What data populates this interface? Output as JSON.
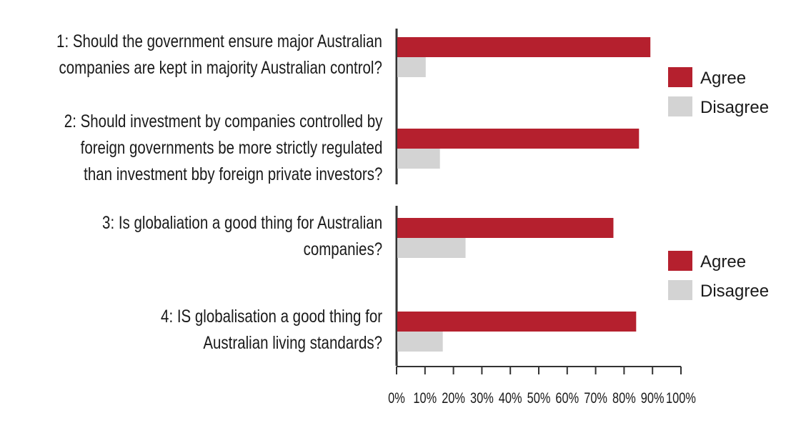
{
  "chart_data": {
    "type": "bar",
    "orientation": "horizontal",
    "categories": [
      "1: Should the government ensure major Australian companies are kept in majority Australian control?",
      "2: Should investment by companies controlled by foreign governments be more strictly regulated than investment bby foreign private investors?",
      "3: Is globaliation a good thing for Australian companies?",
      "4: IS globalisation a good thing for Australian living standards?"
    ],
    "category_lines": [
      [
        "1: Should the government ensure major Australian",
        "companies are kept in majority Australian control?"
      ],
      [
        "2: Should investment by companies controlled by",
        "foreign governments be more strictly regulated",
        "than investment bby foreign private investors?"
      ],
      [
        "3: Is globaliation a good thing for Australian",
        "companies?"
      ],
      [
        "4: IS globalisation a good thing for",
        "Australian living standards?"
      ]
    ],
    "series": [
      {
        "name": "Agree",
        "color": "#b5202e",
        "values": [
          89,
          85,
          76,
          84
        ]
      },
      {
        "name": "Disagree",
        "color": "#d3d3d3",
        "values": [
          10,
          15,
          24,
          16
        ]
      }
    ],
    "xlim": [
      0,
      100
    ],
    "xticks": [
      "0%",
      "10%",
      "20%",
      "30%",
      "40%",
      "50%",
      "60%",
      "70%",
      "80%",
      "90%",
      "100%"
    ],
    "title": "",
    "xlabel": "",
    "ylabel": "",
    "legends": [
      {
        "items": [
          "Agree",
          "Disagree"
        ],
        "placement": "right-upper"
      },
      {
        "items": [
          "Agree",
          "Disagree"
        ],
        "placement": "right-lower"
      }
    ]
  }
}
